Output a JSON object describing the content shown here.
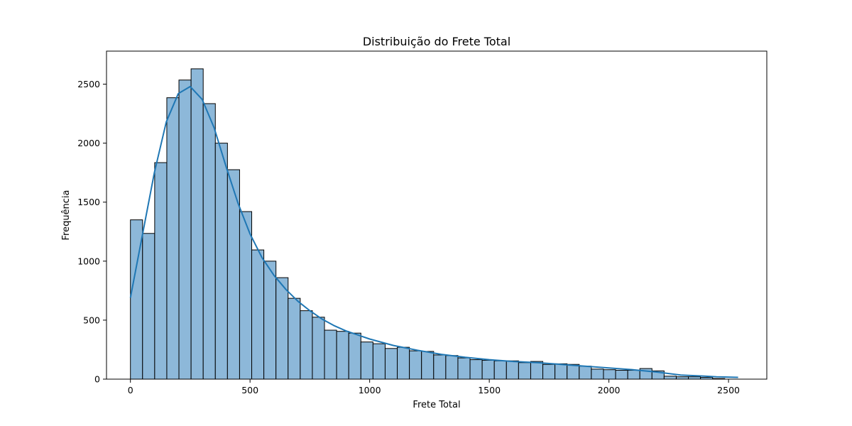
{
  "chart_data": {
    "type": "bar",
    "subtype": "histogram",
    "title": "Distribuição do Frete Total",
    "xlabel": "Frete Total",
    "ylabel": "Frequência",
    "xlim": [
      -100,
      2660
    ],
    "ylim": [
      0,
      2780
    ],
    "x_ticks": [
      0,
      500,
      1000,
      1500,
      2000,
      2500
    ],
    "y_ticks": [
      0,
      500,
      1000,
      1500,
      2000,
      2500
    ],
    "grid": false,
    "legend": "none",
    "bar_color": "#8db8d9",
    "bar_edge_color": "#000000",
    "kde_color": "#1f77b4",
    "bin_start": 0,
    "bin_width": 50.7,
    "values": [
      1350,
      1235,
      1835,
      2385,
      2535,
      2630,
      2335,
      2000,
      1775,
      1420,
      1095,
      1000,
      860,
      685,
      580,
      525,
      415,
      405,
      390,
      315,
      300,
      260,
      270,
      240,
      235,
      205,
      200,
      180,
      165,
      160,
      155,
      155,
      140,
      150,
      125,
      130,
      125,
      110,
      85,
      80,
      75,
      75,
      90,
      70,
      25,
      20,
      20,
      15,
      5,
      0
    ],
    "kde": {
      "x": [
        0,
        50,
        100,
        150,
        200,
        250,
        300,
        350,
        400,
        450,
        500,
        550,
        600,
        650,
        700,
        750,
        800,
        850,
        900,
        950,
        1000,
        1100,
        1200,
        1300,
        1400,
        1500,
        1600,
        1700,
        1800,
        1900,
        2000,
        2100,
        2200,
        2300,
        2400,
        2450,
        2540
      ],
      "y": [
        690,
        1220,
        1750,
        2180,
        2420,
        2480,
        2370,
        2130,
        1800,
        1490,
        1230,
        1030,
        880,
        760,
        660,
        580,
        510,
        455,
        410,
        375,
        340,
        285,
        245,
        210,
        185,
        165,
        150,
        140,
        125,
        110,
        95,
        80,
        60,
        35,
        25,
        20,
        15
      ]
    }
  }
}
